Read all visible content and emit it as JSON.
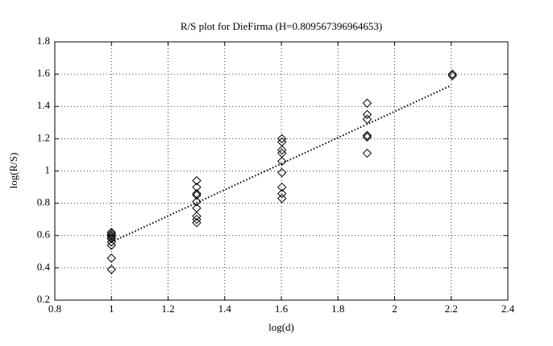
{
  "chart_data": {
    "type": "scatter",
    "title": "R/S plot for DieFirma (H=0.809567396964653)",
    "x_label": "log(d)",
    "y_label": "log(R/S)",
    "xlim": [
      0.8,
      2.4
    ],
    "ylim": [
      0.2,
      1.8
    ],
    "xticks": [
      0.8,
      1,
      1.2,
      1.4,
      1.6,
      1.8,
      2,
      2.2,
      2.4
    ],
    "yticks": [
      0.2,
      0.4,
      0.6,
      0.8,
      1,
      1.2,
      1.4,
      1.6,
      1.8
    ],
    "grid": true,
    "series": [
      {
        "mode": "markers",
        "marker": "diamond",
        "color": "#000000",
        "x": [
          1,
          1,
          1,
          1,
          1,
          1,
          1,
          1,
          1,
          1.30103,
          1.30103,
          1.30103,
          1.30103,
          1.30103,
          1.30103,
          1.30103,
          1.30103,
          1.30103,
          1.60206,
          1.60206,
          1.60206,
          1.60206,
          1.60206,
          1.60206,
          1.60206,
          1.60206,
          1.60206,
          1.90309,
          1.90309,
          1.90309,
          1.90309,
          1.90309,
          1.90309,
          2.20412,
          2.20412
        ],
        "values": [
          0.62,
          0.61,
          0.6,
          0.59,
          0.58,
          0.56,
          0.54,
          0.46,
          0.39,
          0.94,
          0.9,
          0.86,
          0.85,
          0.81,
          0.77,
          0.72,
          0.7,
          0.68,
          1.2,
          1.18,
          1.13,
          1.11,
          1.06,
          0.99,
          0.9,
          0.86,
          0.83,
          1.42,
          1.35,
          1.32,
          1.22,
          1.21,
          1.11,
          1.6,
          1.59
        ]
      },
      {
        "mode": "line",
        "line_style": "dotted",
        "color": "#000000",
        "x": [
          1,
          2.2
        ],
        "values": [
          0.56,
          1.53
        ]
      }
    ]
  }
}
